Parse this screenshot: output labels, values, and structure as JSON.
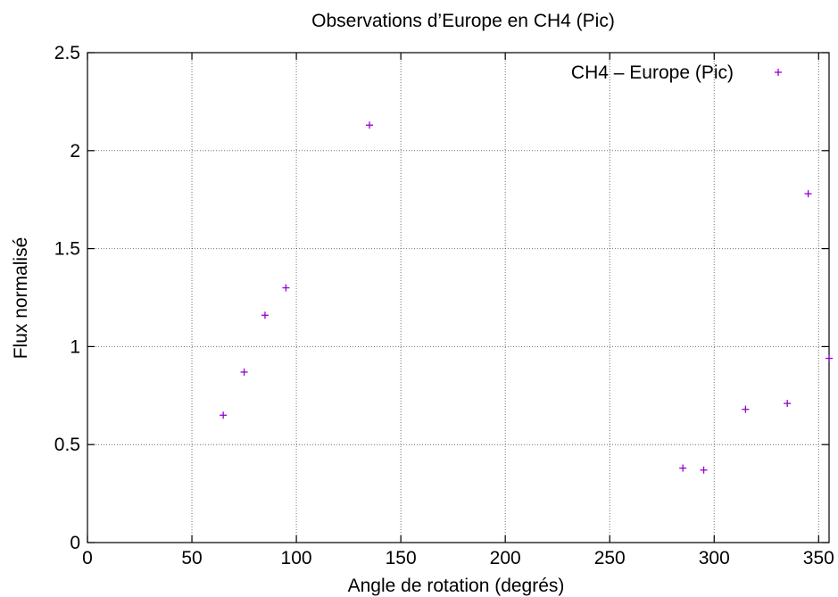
{
  "chart_data": {
    "type": "scatter",
    "title": "Observations d’Europe en CH4 (Pic)",
    "xlabel": "Angle de rotation (degrés)",
    "ylabel": "Flux normalisé",
    "xlim": [
      0,
      355
    ],
    "ylim": [
      0,
      2.5
    ],
    "xticks": [
      0,
      50,
      100,
      150,
      200,
      250,
      300,
      350
    ],
    "yticks": [
      0,
      0.5,
      1,
      1.5,
      2,
      2.5
    ],
    "xtick_labels": [
      "0",
      "50",
      "100",
      "150",
      "200",
      "250",
      "300",
      "350"
    ],
    "ytick_labels": [
      "0",
      "0.5",
      "1",
      "1.5",
      "2",
      "2.5"
    ],
    "grid": true,
    "legend_position": "top-right",
    "series": [
      {
        "name": "CH4 – Europe (Pic)",
        "color": "#9400d3",
        "marker": "plus",
        "x": [
          65,
          75,
          85,
          95,
          135,
          285,
          295,
          315,
          335,
          345,
          355
        ],
        "y": [
          0.65,
          0.87,
          1.16,
          1.3,
          2.13,
          0.38,
          0.37,
          0.68,
          0.71,
          1.78,
          0.94
        ]
      }
    ]
  }
}
